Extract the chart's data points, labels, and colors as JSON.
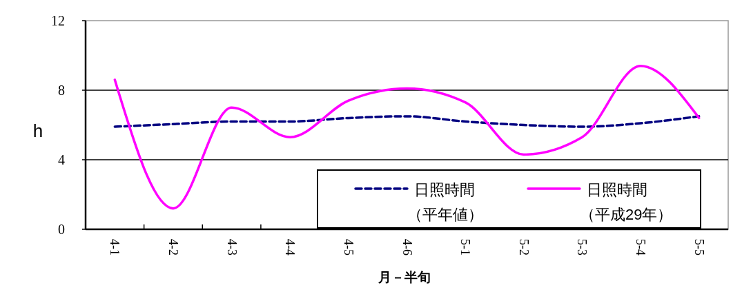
{
  "chart_data": {
    "type": "line",
    "xlabel": "月－半旬",
    "ylabel": "h",
    "categories": [
      "4-1",
      "4-2",
      "4-3",
      "4-4",
      "4-5",
      "4-6",
      "5-1",
      "5-2",
      "5-3",
      "5-4",
      "5-5"
    ],
    "series": [
      {
        "name": "日照時間（平年値）",
        "color": "#000080",
        "line_style": "dashed",
        "values": [
          5.9,
          6.05,
          6.2,
          6.2,
          6.4,
          6.5,
          6.2,
          6.0,
          5.9,
          6.1,
          6.5
        ]
      },
      {
        "name": "日照時間（平成29年）",
        "color": "#ff00ff",
        "line_style": "solid",
        "values": [
          8.6,
          1.2,
          7.0,
          5.3,
          7.4,
          8.1,
          7.3,
          4.3,
          5.3,
          9.4,
          6.4
        ]
      }
    ],
    "ylim": [
      0,
      12
    ],
    "yticks": [
      0,
      4,
      8,
      12
    ],
    "grid": "y",
    "legend": "bottom right",
    "marker": "none"
  }
}
